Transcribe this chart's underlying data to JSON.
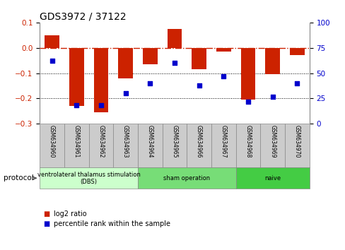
{
  "title": "GDS3972 / 37122",
  "samples": [
    "GSM634960",
    "GSM634961",
    "GSM634962",
    "GSM634963",
    "GSM634964",
    "GSM634965",
    "GSM634966",
    "GSM634967",
    "GSM634968",
    "GSM634969",
    "GSM634970"
  ],
  "log2_ratio": [
    0.05,
    -0.23,
    -0.255,
    -0.12,
    -0.065,
    0.075,
    -0.085,
    -0.015,
    -0.205,
    -0.105,
    -0.03
  ],
  "percentile_rank": [
    62,
    18,
    18,
    30,
    40,
    60,
    38,
    47,
    22,
    27,
    40
  ],
  "ylim_left": [
    -0.3,
    0.1
  ],
  "ylim_right": [
    0,
    100
  ],
  "yticks_left": [
    -0.3,
    -0.2,
    -0.1,
    0.0,
    0.1
  ],
  "yticks_right": [
    0,
    25,
    50,
    75,
    100
  ],
  "bar_color": "#cc2200",
  "dot_color": "#0000cc",
  "ref_line_color": "#cc2200",
  "groups": [
    {
      "label": "ventrolateral thalamus stimulation\n(DBS)",
      "indices": [
        0,
        1,
        2,
        3
      ],
      "color": "#ccffcc"
    },
    {
      "label": "sham operation",
      "indices": [
        4,
        5,
        6,
        7
      ],
      "color": "#77dd77"
    },
    {
      "label": "naive",
      "indices": [
        8,
        9,
        10
      ],
      "color": "#44cc44"
    }
  ],
  "legend_items": [
    {
      "label": "log2 ratio",
      "color": "#cc2200"
    },
    {
      "label": "percentile rank within the sample",
      "color": "#0000cc"
    }
  ],
  "protocol_label": "protocol",
  "sample_box_color": "#cccccc",
  "bg_color": "#ffffff"
}
